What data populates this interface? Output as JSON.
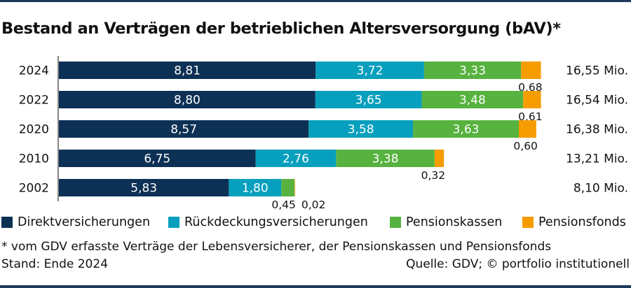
{
  "header": {
    "title": "Bestand an Verträgen der betrieblichen Altersversorgung (bAV)*"
  },
  "chart_data": {
    "type": "bar",
    "orientation": "horizontal",
    "stacked": true,
    "title": "Bestand an Verträgen der betrieblichen Altersversorgung (bAV)*",
    "unit": "Mio.",
    "categories": [
      "2024",
      "2022",
      "2020",
      "2010",
      "2002"
    ],
    "series": [
      {
        "name": "Direktversicherungen",
        "color": "#0d3055",
        "values": [
          8.81,
          8.8,
          8.57,
          6.75,
          5.83
        ],
        "labels": [
          "8,81",
          "8,80",
          "8,57",
          "6,75",
          "5,83"
        ]
      },
      {
        "name": "Rückdeckungsversicherungen",
        "color": "#069fbd",
        "values": [
          3.72,
          3.65,
          3.58,
          2.76,
          1.8
        ],
        "labels": [
          "3,72",
          "3,65",
          "3,58",
          "2,76",
          "1,80"
        ]
      },
      {
        "name": "Pensionskassen",
        "color": "#57b23f",
        "values": [
          3.33,
          3.48,
          3.63,
          3.38,
          0.45
        ],
        "labels": [
          "3,33",
          "3,48",
          "3,63",
          "3,38",
          "0,45"
        ]
      },
      {
        "name": "Pensionsfonds",
        "color": "#f59c00",
        "values": [
          0.68,
          0.61,
          0.6,
          0.32,
          0.02
        ],
        "labels": [
          "0,68",
          "0,61",
          "0,60",
          "0,32",
          "0,02"
        ]
      }
    ],
    "totals": [
      "16,55 Mio.",
      "16,54 Mio.",
      "16,38 Mio.",
      "13,21 Mio.",
      "8,10 Mio."
    ],
    "xlim": [
      0,
      16.55
    ],
    "grid": false,
    "legend": "bottom"
  },
  "footer": {
    "note": "* vom GDV erfasste Verträge der Lebensversicherer, der Pensionskassen und Pensionsfonds",
    "stand": "Stand: Ende 2024",
    "source": "Quelle: GDV; © portfolio institutionell"
  }
}
